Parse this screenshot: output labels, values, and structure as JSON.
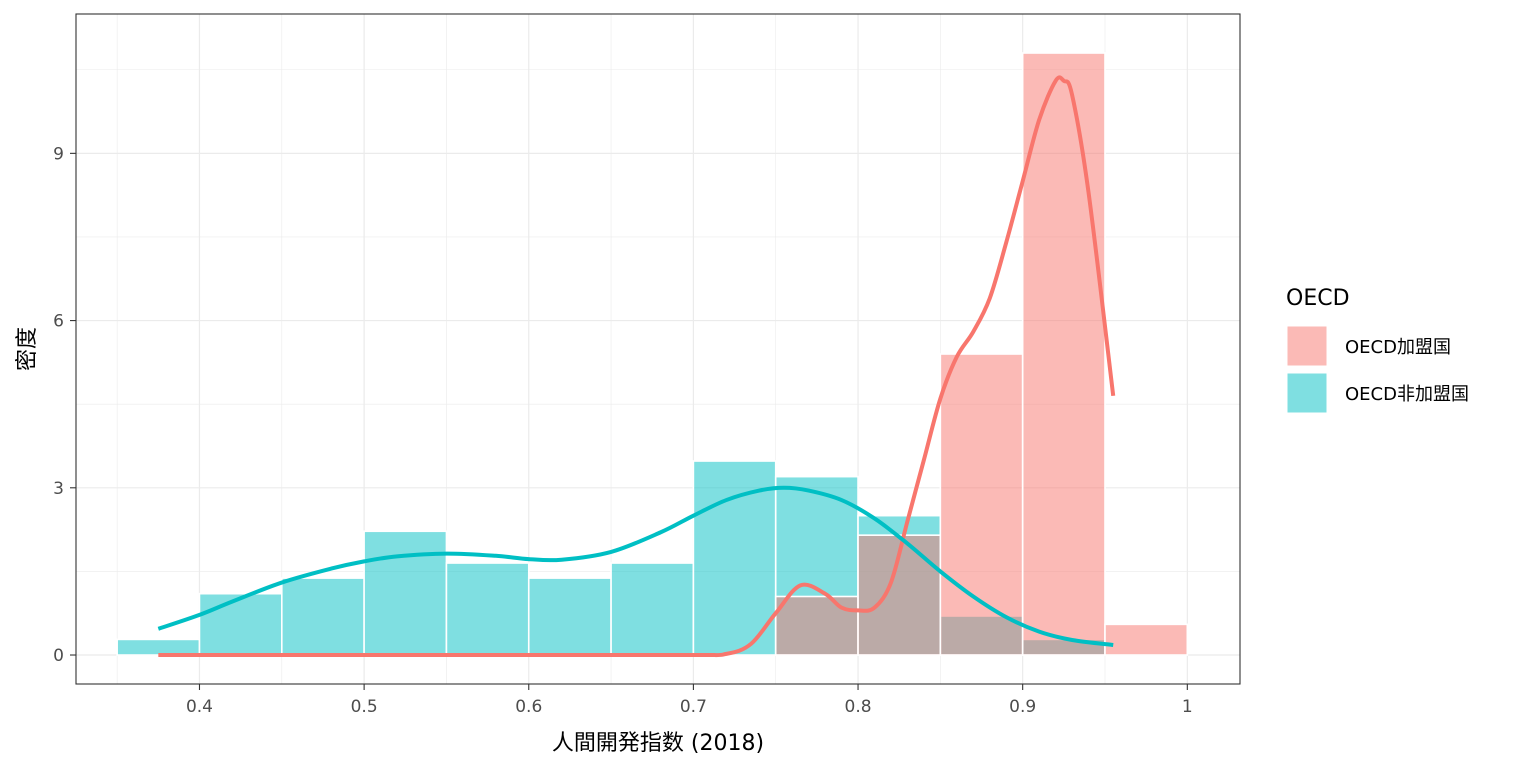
{
  "chart_data": {
    "type": "histogram",
    "title": "",
    "xlabel": "人間開発指数 (2018)",
    "ylabel": "密度",
    "xlim": [
      0.325,
      1.032
    ],
    "ylim": [
      -0.52,
      11.5
    ],
    "x_ticks": [
      "0.4",
      "0.5",
      "0.6",
      "0.7",
      "0.8",
      "0.9",
      "1"
    ],
    "y_ticks": [
      "0",
      "3",
      "6",
      "9"
    ],
    "grid": true,
    "legend": {
      "title": "OECD",
      "position": "right",
      "entries": [
        "OECD加盟国",
        "OECD非加盟国"
      ]
    },
    "series": [
      {
        "name": "OECD加盟国",
        "color": "#F8766D",
        "bins": [
          {
            "x0": 0.75,
            "x1": 0.8,
            "density": 1.05
          },
          {
            "x0": 0.8,
            "x1": 0.85,
            "density": 2.15
          },
          {
            "x0": 0.85,
            "x1": 0.9,
            "density": 5.4
          },
          {
            "x0": 0.9,
            "x1": 0.95,
            "density": 10.8
          },
          {
            "x0": 0.95,
            "x1": 1.0,
            "density": 0.55
          }
        ],
        "density_curve": [
          [
            0.375,
            0.0
          ],
          [
            0.6,
            0.0
          ],
          [
            0.7,
            0.0
          ],
          [
            0.72,
            0.02
          ],
          [
            0.735,
            0.2
          ],
          [
            0.75,
            0.75
          ],
          [
            0.765,
            1.25
          ],
          [
            0.78,
            1.1
          ],
          [
            0.79,
            0.85
          ],
          [
            0.8,
            0.8
          ],
          [
            0.81,
            0.85
          ],
          [
            0.82,
            1.3
          ],
          [
            0.83,
            2.4
          ],
          [
            0.84,
            3.5
          ],
          [
            0.85,
            4.6
          ],
          [
            0.86,
            5.35
          ],
          [
            0.87,
            5.8
          ],
          [
            0.88,
            6.4
          ],
          [
            0.89,
            7.4
          ],
          [
            0.9,
            8.5
          ],
          [
            0.91,
            9.6
          ],
          [
            0.92,
            10.3
          ],
          [
            0.925,
            10.3
          ],
          [
            0.93,
            10.05
          ],
          [
            0.94,
            8.3
          ],
          [
            0.955,
            4.65
          ]
        ]
      },
      {
        "name": "OECD非加盟国",
        "color": "#00BFC4",
        "bins": [
          {
            "x0": 0.35,
            "x1": 0.4,
            "density": 0.28
          },
          {
            "x0": 0.4,
            "x1": 0.45,
            "density": 1.1
          },
          {
            "x0": 0.45,
            "x1": 0.5,
            "density": 1.38
          },
          {
            "x0": 0.5,
            "x1": 0.55,
            "density": 2.22
          },
          {
            "x0": 0.55,
            "x1": 0.6,
            "density": 1.65
          },
          {
            "x0": 0.6,
            "x1": 0.65,
            "density": 1.38
          },
          {
            "x0": 0.65,
            "x1": 0.7,
            "density": 1.65
          },
          {
            "x0": 0.7,
            "x1": 0.75,
            "density": 3.48
          },
          {
            "x0": 0.75,
            "x1": 0.8,
            "density": 3.2
          },
          {
            "x0": 0.8,
            "x1": 0.85,
            "density": 2.5
          },
          {
            "x0": 0.85,
            "x1": 0.9,
            "density": 0.7
          },
          {
            "x0": 0.9,
            "x1": 0.95,
            "density": 0.28
          }
        ],
        "density_curve": [
          [
            0.375,
            0.47
          ],
          [
            0.4,
            0.72
          ],
          [
            0.42,
            0.96
          ],
          [
            0.45,
            1.3
          ],
          [
            0.48,
            1.55
          ],
          [
            0.5,
            1.68
          ],
          [
            0.52,
            1.77
          ],
          [
            0.55,
            1.82
          ],
          [
            0.58,
            1.78
          ],
          [
            0.6,
            1.72
          ],
          [
            0.62,
            1.71
          ],
          [
            0.65,
            1.85
          ],
          [
            0.68,
            2.2
          ],
          [
            0.7,
            2.5
          ],
          [
            0.72,
            2.78
          ],
          [
            0.74,
            2.95
          ],
          [
            0.755,
            3.0
          ],
          [
            0.77,
            2.95
          ],
          [
            0.79,
            2.78
          ],
          [
            0.81,
            2.45
          ],
          [
            0.83,
            2.0
          ],
          [
            0.85,
            1.5
          ],
          [
            0.87,
            1.05
          ],
          [
            0.89,
            0.68
          ],
          [
            0.91,
            0.42
          ],
          [
            0.93,
            0.27
          ],
          [
            0.955,
            0.18
          ]
        ]
      }
    ]
  }
}
